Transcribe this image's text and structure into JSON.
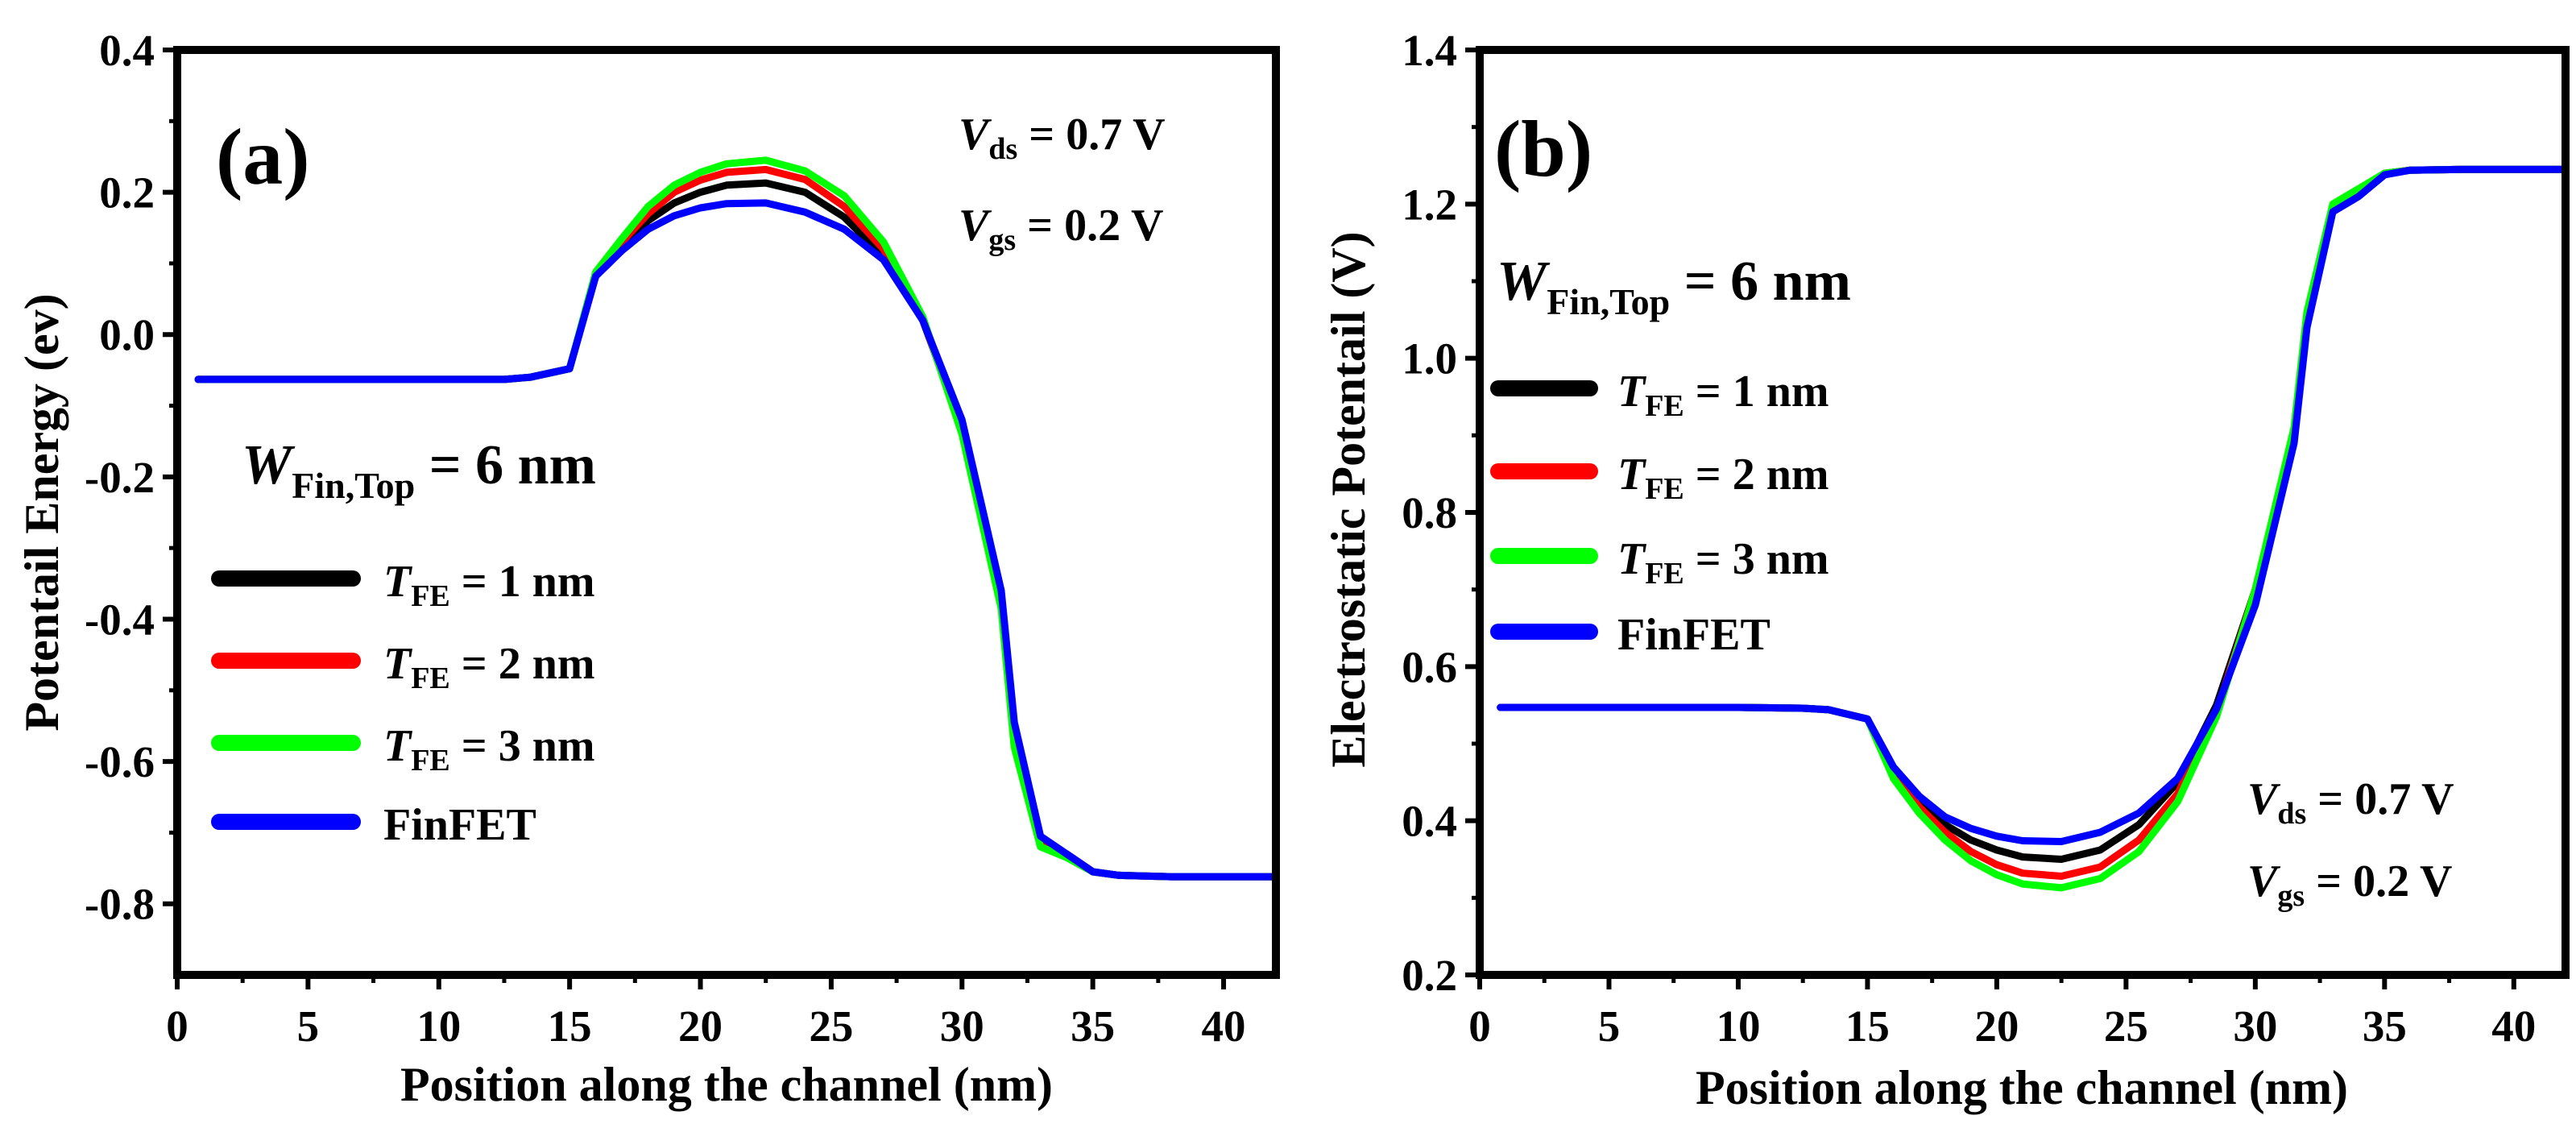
{
  "figure": {
    "panels": [
      {
        "label": "(a)",
        "wfin": {
          "main": "W",
          "sub": "Fin,Top",
          "rest": " = 6 nm"
        },
        "params": [
          {
            "main": "V",
            "sub": "ds",
            "rest": " = 0.7 V"
          },
          {
            "main": "V",
            "sub": "gs",
            "rest": " = 0.2 V"
          }
        ],
        "legend": [
          {
            "main": "T",
            "sub": "FE",
            "rest": " = 1 nm",
            "color": "#000000"
          },
          {
            "main": "T",
            "sub": "FE",
            "rest": " = 2 nm",
            "color": "#ff0000"
          },
          {
            "main": "T",
            "sub": "FE",
            "rest": " = 3 nm",
            "color": "#00ff00"
          },
          {
            "main": "FinFET",
            "sub": "",
            "rest": "",
            "color": "#0000ff"
          }
        ]
      },
      {
        "label": "(b)",
        "wfin": {
          "main": "W",
          "sub": "Fin,Top",
          "rest": " = 6 nm"
        },
        "params": [
          {
            "main": "V",
            "sub": "ds",
            "rest": " = 0.7 V"
          },
          {
            "main": "V",
            "sub": "gs",
            "rest": " = 0.2 V"
          }
        ],
        "legend": [
          {
            "main": "T",
            "sub": "FE",
            "rest": " = 1 nm",
            "color": "#000000"
          },
          {
            "main": "T",
            "sub": "FE",
            "rest": " = 2 nm",
            "color": "#ff0000"
          },
          {
            "main": "T",
            "sub": "FE",
            "rest": " = 3 nm",
            "color": "#00ff00"
          },
          {
            "main": "FinFET",
            "sub": "",
            "rest": "",
            "color": "#0000ff"
          }
        ]
      }
    ]
  },
  "chart_data": [
    {
      "type": "line",
      "xlabel": "Position along the channel (nm)",
      "ylabel": "Potentail Energy (ev)",
      "xlim": [
        0,
        42
      ],
      "ylim": [
        -0.9,
        0.4
      ],
      "xticks": [
        0,
        5,
        10,
        15,
        20,
        25,
        30,
        35,
        40
      ],
      "xtick_labels": [
        "0",
        "5",
        "10",
        "15",
        "20",
        "25",
        "30",
        "35",
        "40"
      ],
      "yticks": [
        -0.8,
        -0.6,
        -0.4,
        -0.2,
        0.0,
        0.2,
        0.4
      ],
      "ytick_labels": [
        "-0.8",
        "-0.6",
        "-0.4",
        "-0.2",
        "0.0",
        "0.2",
        "0.4"
      ],
      "series": [
        {
          "name": "T_FE = 1 nm",
          "color": "#000000",
          "x": [
            0.8,
            5,
            10,
            12.5,
            13.5,
            15,
            16,
            17,
            18,
            19,
            20,
            21,
            22.5,
            24,
            25.5,
            27,
            28.5,
            30,
            31.5,
            32,
            33,
            34,
            35,
            36,
            38,
            40,
            42
          ],
          "y": [
            -0.063,
            -0.063,
            -0.063,
            -0.063,
            -0.06,
            -0.048,
            0.085,
            0.125,
            0.16,
            0.185,
            0.2,
            0.21,
            0.213,
            0.2,
            0.165,
            0.11,
            0.02,
            -0.13,
            -0.37,
            -0.55,
            -0.71,
            -0.73,
            -0.755,
            -0.76,
            -0.762,
            -0.762,
            -0.762
          ]
        },
        {
          "name": "T_FE = 2 nm",
          "color": "#ff0000",
          "x": [
            0.8,
            5,
            10,
            12.5,
            13.5,
            15,
            16,
            17,
            18,
            19,
            20,
            21,
            22.5,
            24,
            25.5,
            27,
            28.5,
            30,
            31.5,
            32,
            33,
            34,
            35,
            36,
            38,
            40,
            42
          ],
          "y": [
            -0.063,
            -0.063,
            -0.063,
            -0.063,
            -0.06,
            -0.048,
            0.085,
            0.13,
            0.17,
            0.2,
            0.217,
            0.228,
            0.232,
            0.218,
            0.18,
            0.12,
            0.022,
            -0.135,
            -0.375,
            -0.56,
            -0.71,
            -0.73,
            -0.755,
            -0.76,
            -0.762,
            -0.762,
            -0.762
          ]
        },
        {
          "name": "T_FE = 3 nm",
          "color": "#00ff00",
          "x": [
            0.8,
            5,
            10,
            12.5,
            13.5,
            15,
            16,
            17,
            18,
            19,
            20,
            21,
            22.5,
            24,
            25.5,
            27,
            28.5,
            30,
            31.5,
            32,
            33,
            34,
            35,
            36,
            38,
            40,
            42
          ],
          "y": [
            -0.063,
            -0.063,
            -0.063,
            -0.063,
            -0.06,
            -0.048,
            0.088,
            0.135,
            0.18,
            0.21,
            0.228,
            0.24,
            0.245,
            0.23,
            0.195,
            0.13,
            0.025,
            -0.14,
            -0.385,
            -0.58,
            -0.72,
            -0.735,
            -0.755,
            -0.76,
            -0.762,
            -0.762,
            -0.762
          ]
        },
        {
          "name": "FinFET",
          "color": "#0000ff",
          "x": [
            0.8,
            5,
            10,
            12.5,
            13.5,
            15,
            16,
            17,
            18,
            19,
            20,
            21,
            22.5,
            24,
            25.5,
            27,
            28.5,
            30,
            31.5,
            32,
            33,
            34,
            35,
            36,
            38,
            40,
            42
          ],
          "y": [
            -0.063,
            -0.063,
            -0.063,
            -0.063,
            -0.06,
            -0.048,
            0.082,
            0.118,
            0.148,
            0.167,
            0.178,
            0.184,
            0.185,
            0.172,
            0.148,
            0.105,
            0.02,
            -0.12,
            -0.36,
            -0.545,
            -0.705,
            -0.73,
            -0.755,
            -0.76,
            -0.762,
            -0.762,
            -0.762
          ]
        }
      ]
    },
    {
      "type": "line",
      "xlabel": "Position along the channel (nm)",
      "ylabel": "Electrostatic Potentail (V)",
      "xlim": [
        0,
        42
      ],
      "ylim": [
        0.2,
        1.4
      ],
      "xticks": [
        0,
        5,
        10,
        15,
        20,
        25,
        30,
        35,
        40
      ],
      "xtick_labels": [
        "0",
        "5",
        "10",
        "15",
        "20",
        "25",
        "30",
        "35",
        "40"
      ],
      "yticks": [
        0.2,
        0.4,
        0.6,
        0.8,
        1.0,
        1.2,
        1.4
      ],
      "ytick_labels": [
        "0.2",
        "0.4",
        "0.6",
        "0.8",
        "1.0",
        "1.2",
        "1.4"
      ],
      "series": [
        {
          "name": "T_FE = 1 nm",
          "color": "#000000",
          "x": [
            0.8,
            5,
            10,
            12.5,
            13.5,
            15,
            16,
            17,
            18,
            19,
            20,
            21,
            22.5,
            24,
            25.5,
            27,
            28.5,
            30,
            31.5,
            32,
            33,
            34,
            35,
            36,
            38,
            40,
            42
          ],
          "y": [
            0.547,
            0.547,
            0.547,
            0.546,
            0.544,
            0.532,
            0.465,
            0.425,
            0.395,
            0.375,
            0.362,
            0.353,
            0.35,
            0.362,
            0.395,
            0.45,
            0.55,
            0.7,
            0.9,
            1.05,
            1.195,
            1.215,
            1.24,
            1.244,
            1.245,
            1.245,
            1.245
          ]
        },
        {
          "name": "T_FE = 2 nm",
          "color": "#ff0000",
          "x": [
            0.8,
            5,
            10,
            12.5,
            13.5,
            15,
            16,
            17,
            18,
            19,
            20,
            21,
            22.5,
            24,
            25.5,
            27,
            28.5,
            30,
            31.5,
            32,
            33,
            34,
            35,
            36,
            38,
            40,
            42
          ],
          "y": [
            0.547,
            0.547,
            0.547,
            0.546,
            0.544,
            0.532,
            0.46,
            0.418,
            0.385,
            0.36,
            0.343,
            0.332,
            0.328,
            0.34,
            0.375,
            0.435,
            0.54,
            0.7,
            0.905,
            1.055,
            1.197,
            1.215,
            1.24,
            1.244,
            1.245,
            1.245,
            1.245
          ]
        },
        {
          "name": "T_FE = 3 nm",
          "color": "#00ff00",
          "x": [
            0.8,
            5,
            10,
            12.5,
            13.5,
            15,
            16,
            17,
            18,
            19,
            20,
            21,
            22.5,
            24,
            25.5,
            27,
            28.5,
            30,
            31.5,
            32,
            33,
            34,
            35,
            36,
            38,
            40,
            42
          ],
          "y": [
            0.547,
            0.547,
            0.547,
            0.546,
            0.544,
            0.532,
            0.455,
            0.41,
            0.375,
            0.348,
            0.33,
            0.318,
            0.313,
            0.325,
            0.36,
            0.425,
            0.535,
            0.7,
            0.91,
            1.06,
            1.2,
            1.22,
            1.24,
            1.244,
            1.245,
            1.245,
            1.245
          ]
        },
        {
          "name": "FinFET",
          "color": "#0000ff",
          "x": [
            0.8,
            5,
            10,
            12.5,
            13.5,
            15,
            16,
            17,
            18,
            19,
            20,
            21,
            22.5,
            24,
            25.5,
            27,
            28.5,
            30,
            31.5,
            32,
            33,
            34,
            35,
            36,
            38,
            40,
            42
          ],
          "y": [
            0.547,
            0.547,
            0.547,
            0.546,
            0.544,
            0.532,
            0.47,
            0.432,
            0.405,
            0.39,
            0.38,
            0.374,
            0.373,
            0.385,
            0.41,
            0.455,
            0.545,
            0.68,
            0.89,
            1.04,
            1.19,
            1.21,
            1.238,
            1.244,
            1.245,
            1.245,
            1.245
          ]
        }
      ]
    }
  ]
}
